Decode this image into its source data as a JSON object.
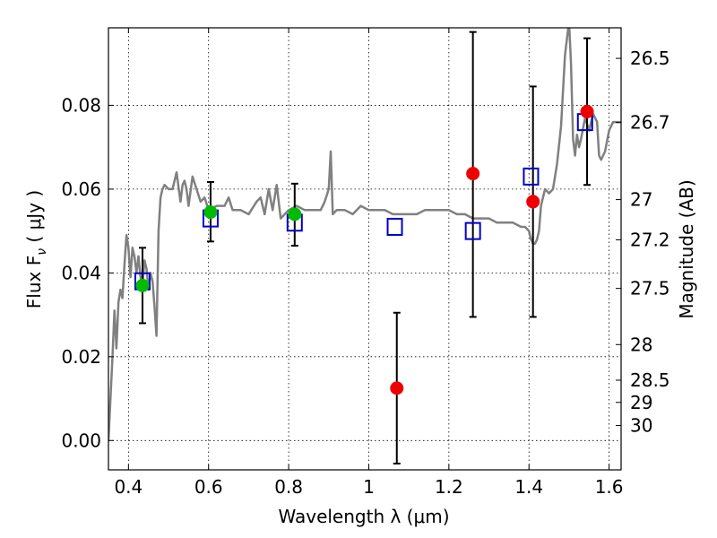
{
  "chart_data": {
    "type": "scatter",
    "xlabel": "Wavelength  λ (μm)",
    "ylabel": "Flux  F",
    "ylabel_subscript": "ν",
    "ylabel_units": " ( μJy )",
    "y2label": "Magnitude (AB)",
    "xlim": [
      0.35,
      1.63
    ],
    "ylim": [
      -0.007,
      0.0985
    ],
    "grid": true,
    "x_ticks": [
      0.4,
      0.6,
      0.8,
      1.0,
      1.2,
      1.4,
      1.6
    ],
    "x_tick_labels": [
      "0.4",
      "0.6",
      "0.8",
      "1",
      "1.2",
      "1.4",
      "1.6"
    ],
    "y_ticks": [
      0.0,
      0.02,
      0.04,
      0.06,
      0.08
    ],
    "y_tick_labels": [
      "0.00",
      "0.02",
      "0.04",
      "0.06",
      "0.08"
    ],
    "y2_ticks": [
      {
        "label": "26.5",
        "flux": 0.0912
      },
      {
        "label": "26.7",
        "flux": 0.0759
      },
      {
        "label": "27",
        "flux": 0.0575
      },
      {
        "label": "27.2",
        "flux": 0.0479
      },
      {
        "label": "27.5",
        "flux": 0.0363
      },
      {
        "label": "28",
        "flux": 0.0229
      },
      {
        "label": "28.5",
        "flux": 0.0144
      },
      {
        "label": "29",
        "flux": 0.0091
      },
      {
        "label": "30",
        "flux": 0.0036
      }
    ],
    "series": [
      {
        "kind": "line",
        "color": "#808080",
        "x": [
          0.35,
          0.36,
          0.365,
          0.37,
          0.375,
          0.38,
          0.385,
          0.39,
          0.395,
          0.4,
          0.405,
          0.41,
          0.415,
          0.42,
          0.425,
          0.43,
          0.435,
          0.44,
          0.445,
          0.45,
          0.455,
          0.46,
          0.465,
          0.47,
          0.475,
          0.48,
          0.485,
          0.49,
          0.5,
          0.51,
          0.52,
          0.53,
          0.535,
          0.54,
          0.545,
          0.55,
          0.56,
          0.57,
          0.58,
          0.59,
          0.6,
          0.62,
          0.64,
          0.65,
          0.66,
          0.68,
          0.7,
          0.72,
          0.73,
          0.74,
          0.75,
          0.76,
          0.77,
          0.78,
          0.8,
          0.82,
          0.84,
          0.86,
          0.88,
          0.89,
          0.9,
          0.905,
          0.91,
          0.92,
          0.94,
          0.96,
          0.98,
          1.0,
          1.02,
          1.04,
          1.06,
          1.08,
          1.1,
          1.12,
          1.14,
          1.16,
          1.18,
          1.2,
          1.22,
          1.24,
          1.26,
          1.28,
          1.3,
          1.32,
          1.34,
          1.36,
          1.38,
          1.39,
          1.4,
          1.405,
          1.41,
          1.415,
          1.42,
          1.425,
          1.43,
          1.44,
          1.45,
          1.46,
          1.47,
          1.48,
          1.49,
          1.5,
          1.505,
          1.51,
          1.515,
          1.52,
          1.525,
          1.53,
          1.54,
          1.55,
          1.56,
          1.57,
          1.575,
          1.58,
          1.59,
          1.6,
          1.61,
          1.62,
          1.63
        ],
        "y": [
          0.0,
          0.02,
          0.031,
          0.022,
          0.033,
          0.036,
          0.034,
          0.042,
          0.049,
          0.046,
          0.039,
          0.046,
          0.044,
          0.04,
          0.044,
          0.039,
          0.037,
          0.043,
          0.041,
          0.036,
          0.04,
          0.038,
          0.032,
          0.025,
          0.05,
          0.058,
          0.06,
          0.061,
          0.06,
          0.06,
          0.064,
          0.057,
          0.061,
          0.062,
          0.06,
          0.056,
          0.063,
          0.06,
          0.057,
          0.058,
          0.055,
          0.056,
          0.056,
          0.058,
          0.055,
          0.055,
          0.054,
          0.057,
          0.058,
          0.054,
          0.06,
          0.055,
          0.061,
          0.053,
          0.055,
          0.056,
          0.055,
          0.055,
          0.055,
          0.057,
          0.06,
          0.069,
          0.054,
          0.055,
          0.055,
          0.054,
          0.056,
          0.055,
          0.055,
          0.055,
          0.054,
          0.054,
          0.054,
          0.054,
          0.055,
          0.055,
          0.055,
          0.055,
          0.054,
          0.054,
          0.053,
          0.053,
          0.053,
          0.052,
          0.052,
          0.052,
          0.051,
          0.051,
          0.05,
          0.048,
          0.047,
          0.047,
          0.048,
          0.05,
          0.056,
          0.06,
          0.059,
          0.06,
          0.066,
          0.075,
          0.092,
          0.1,
          0.09,
          0.072,
          0.068,
          0.073,
          0.07,
          0.072,
          0.077,
          0.074,
          0.078,
          0.076,
          0.068,
          0.067,
          0.069,
          0.074,
          0.076,
          0.076,
          0.076
        ]
      },
      {
        "kind": "markers",
        "marker": "square",
        "color": "#0000cc",
        "x": [
          0.435,
          0.605,
          0.815,
          1.065,
          1.26,
          1.405,
          1.54
        ],
        "y": [
          0.038,
          0.053,
          0.052,
          0.051,
          0.05,
          0.063,
          0.076
        ]
      },
      {
        "kind": "markers",
        "marker": "circle",
        "color": "#00bb00",
        "x": [
          0.435,
          0.605,
          0.815
        ],
        "y": [
          0.037,
          0.0545,
          0.054
        ]
      },
      {
        "kind": "markers",
        "marker": "circle",
        "color": "#ee0000",
        "x": [
          1.07,
          1.26,
          1.41,
          1.545
        ],
        "y": [
          0.0125,
          0.0637,
          0.057,
          0.0785
        ]
      },
      {
        "kind": "errorbars",
        "color": "#000000",
        "x": [
          0.435,
          0.605,
          0.815,
          1.07,
          1.26,
          1.41,
          1.545
        ],
        "lower": [
          0.028,
          0.0475,
          0.0465,
          -0.0055,
          0.0295,
          0.0295,
          0.061
        ],
        "upper": [
          0.046,
          0.0617,
          0.0613,
          0.0305,
          0.0975,
          0.0845,
          0.096
        ]
      }
    ]
  }
}
